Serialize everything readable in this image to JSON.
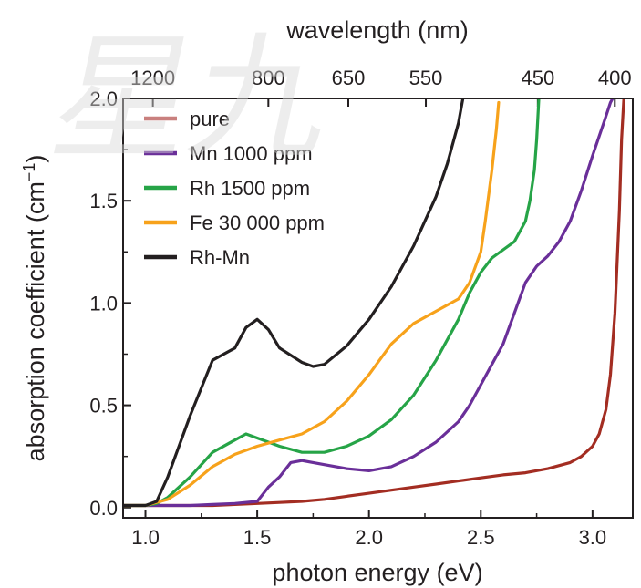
{
  "chart_data": {
    "type": "line",
    "xlabel": "photon energy (eV)",
    "ylabel_main": "absorption coefficient (cm",
    "ylabel_sup": "−1",
    "ylabel_close": ")",
    "top_axis_label": "wavelength (nm)",
    "xlim": [
      0.9,
      3.18
    ],
    "ylim": [
      -0.05,
      2.0
    ],
    "x_ticks": [
      1.0,
      1.5,
      2.0,
      2.5,
      3.0
    ],
    "x_tick_labels": [
      "1.0",
      "1.5",
      "2.0",
      "2.5",
      "3.0"
    ],
    "y_ticks": [
      0.0,
      0.5,
      1.0,
      1.5,
      2.0
    ],
    "y_tick_labels": [
      "0.0",
      "0.5",
      "1.0",
      "1.5",
      "2.0"
    ],
    "top_ticks_nm": [
      1200,
      800,
      650,
      550,
      450,
      400
    ],
    "top_tick_labels": [
      "1200",
      "800",
      "650",
      "550",
      "450",
      "400"
    ],
    "legend_position": "top-left",
    "series": [
      {
        "name": "pure",
        "color": "#a32d22",
        "legend_color": "#c9807e",
        "points": [
          [
            0.9,
            0.01
          ],
          [
            1.0,
            0.01
          ],
          [
            1.1,
            0.01
          ],
          [
            1.2,
            0.01
          ],
          [
            1.3,
            0.01
          ],
          [
            1.4,
            0.015
          ],
          [
            1.5,
            0.02
          ],
          [
            1.6,
            0.025
          ],
          [
            1.7,
            0.03
          ],
          [
            1.8,
            0.04
          ],
          [
            1.9,
            0.055
          ],
          [
            2.0,
            0.07
          ],
          [
            2.1,
            0.085
          ],
          [
            2.2,
            0.1
          ],
          [
            2.3,
            0.115
          ],
          [
            2.4,
            0.13
          ],
          [
            2.5,
            0.145
          ],
          [
            2.6,
            0.16
          ],
          [
            2.7,
            0.17
          ],
          [
            2.8,
            0.19
          ],
          [
            2.9,
            0.22
          ],
          [
            2.95,
            0.25
          ],
          [
            3.0,
            0.3
          ],
          [
            3.03,
            0.36
          ],
          [
            3.06,
            0.48
          ],
          [
            3.08,
            0.65
          ],
          [
            3.1,
            0.95
          ],
          [
            3.12,
            1.45
          ],
          [
            3.13,
            1.8
          ],
          [
            3.14,
            2.0
          ]
        ]
      },
      {
        "name": "Mn 1000 ppm",
        "color": "#6a2f99",
        "points": [
          [
            0.9,
            0.01
          ],
          [
            1.0,
            0.01
          ],
          [
            1.2,
            0.01
          ],
          [
            1.3,
            0.015
          ],
          [
            1.4,
            0.02
          ],
          [
            1.5,
            0.03
          ],
          [
            1.55,
            0.1
          ],
          [
            1.6,
            0.15
          ],
          [
            1.65,
            0.22
          ],
          [
            1.7,
            0.23
          ],
          [
            1.8,
            0.21
          ],
          [
            1.9,
            0.19
          ],
          [
            2.0,
            0.18
          ],
          [
            2.1,
            0.2
          ],
          [
            2.2,
            0.25
          ],
          [
            2.3,
            0.32
          ],
          [
            2.4,
            0.42
          ],
          [
            2.45,
            0.5
          ],
          [
            2.5,
            0.6
          ],
          [
            2.55,
            0.7
          ],
          [
            2.6,
            0.8
          ],
          [
            2.65,
            0.95
          ],
          [
            2.7,
            1.1
          ],
          [
            2.75,
            1.18
          ],
          [
            2.8,
            1.23
          ],
          [
            2.85,
            1.3
          ],
          [
            2.9,
            1.4
          ],
          [
            2.95,
            1.55
          ],
          [
            3.0,
            1.72
          ],
          [
            3.05,
            1.88
          ],
          [
            3.08,
            1.98
          ],
          [
            3.09,
            2.0
          ]
        ]
      },
      {
        "name": "Rh 1500 ppm",
        "color": "#26a447",
        "points": [
          [
            0.9,
            0.01
          ],
          [
            1.0,
            0.01
          ],
          [
            1.05,
            0.02
          ],
          [
            1.1,
            0.05
          ],
          [
            1.2,
            0.15
          ],
          [
            1.3,
            0.27
          ],
          [
            1.4,
            0.33
          ],
          [
            1.45,
            0.36
          ],
          [
            1.5,
            0.34
          ],
          [
            1.6,
            0.3
          ],
          [
            1.7,
            0.27
          ],
          [
            1.8,
            0.27
          ],
          [
            1.9,
            0.3
          ],
          [
            2.0,
            0.35
          ],
          [
            2.1,
            0.43
          ],
          [
            2.2,
            0.55
          ],
          [
            2.3,
            0.72
          ],
          [
            2.4,
            0.92
          ],
          [
            2.45,
            1.05
          ],
          [
            2.5,
            1.15
          ],
          [
            2.55,
            1.22
          ],
          [
            2.6,
            1.26
          ],
          [
            2.65,
            1.3
          ],
          [
            2.7,
            1.4
          ],
          [
            2.72,
            1.5
          ],
          [
            2.74,
            1.65
          ],
          [
            2.75,
            1.8
          ],
          [
            2.76,
            2.0
          ]
        ]
      },
      {
        "name": "Fe 30 000 ppm",
        "color": "#f7a21b",
        "points": [
          [
            0.9,
            0.01
          ],
          [
            1.0,
            0.01
          ],
          [
            1.1,
            0.04
          ],
          [
            1.2,
            0.11
          ],
          [
            1.3,
            0.2
          ],
          [
            1.4,
            0.26
          ],
          [
            1.5,
            0.3
          ],
          [
            1.6,
            0.33
          ],
          [
            1.7,
            0.36
          ],
          [
            1.8,
            0.42
          ],
          [
            1.9,
            0.52
          ],
          [
            2.0,
            0.65
          ],
          [
            2.1,
            0.8
          ],
          [
            2.2,
            0.9
          ],
          [
            2.3,
            0.96
          ],
          [
            2.4,
            1.02
          ],
          [
            2.45,
            1.1
          ],
          [
            2.5,
            1.25
          ],
          [
            2.52,
            1.4
          ],
          [
            2.55,
            1.65
          ],
          [
            2.57,
            1.85
          ],
          [
            2.58,
            1.98
          ]
        ]
      },
      {
        "name": "Rh-Mn",
        "color": "#231f20",
        "points": [
          [
            0.9,
            0.01
          ],
          [
            1.0,
            0.01
          ],
          [
            1.05,
            0.03
          ],
          [
            1.1,
            0.15
          ],
          [
            1.2,
            0.45
          ],
          [
            1.3,
            0.72
          ],
          [
            1.4,
            0.78
          ],
          [
            1.45,
            0.88
          ],
          [
            1.5,
            0.92
          ],
          [
            1.55,
            0.87
          ],
          [
            1.6,
            0.78
          ],
          [
            1.7,
            0.71
          ],
          [
            1.75,
            0.69
          ],
          [
            1.8,
            0.7
          ],
          [
            1.9,
            0.79
          ],
          [
            2.0,
            0.92
          ],
          [
            2.1,
            1.08
          ],
          [
            2.2,
            1.28
          ],
          [
            2.3,
            1.52
          ],
          [
            2.35,
            1.68
          ],
          [
            2.4,
            1.88
          ],
          [
            2.42,
            2.0
          ]
        ]
      }
    ]
  },
  "watermark": {
    "text": "星九"
  }
}
